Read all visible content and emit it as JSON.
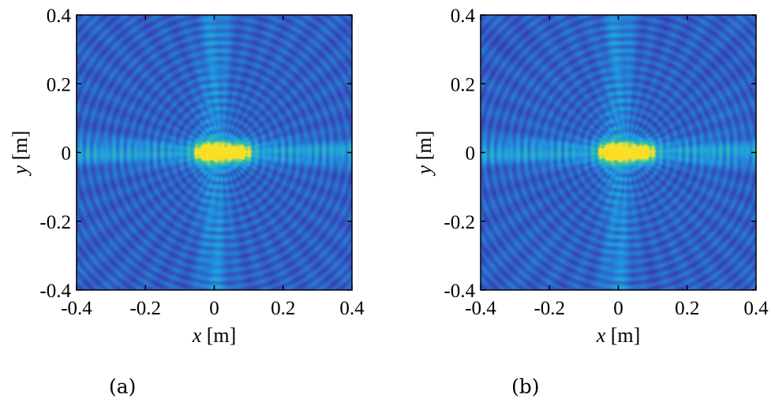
{
  "chart_data": [
    {
      "type": "heatmap",
      "panel_label": "(a)",
      "xlabel_var": "x",
      "xlabel_unit": " [m]",
      "ylabel_var": "y",
      "ylabel_unit": " [m]",
      "xlim": [
        -0.4,
        0.4
      ],
      "ylim": [
        -0.4,
        0.4
      ],
      "x_ticks": [
        -0.4,
        -0.2,
        0,
        0.2,
        0.4
      ],
      "y_ticks": [
        -0.4,
        -0.2,
        0,
        0.2,
        0.4
      ],
      "x_tick_labels": [
        "-0.4",
        "-0.2",
        "0",
        "0.2",
        "0.4"
      ],
      "y_tick_labels": [
        "-0.4",
        "-0.2",
        "0",
        "0.2",
        "0.4"
      ],
      "colormap": "parula",
      "hotspot_x": [
        -0.03,
        0.08
      ],
      "hotspot_y": 0,
      "grid": false,
      "noise": 0.15
    },
    {
      "type": "heatmap",
      "panel_label": "(b)",
      "xlabel_var": "x",
      "xlabel_unit": " [m]",
      "ylabel_var": "y",
      "ylabel_unit": " [m]",
      "xlim": [
        -0.4,
        0.4
      ],
      "ylim": [
        -0.4,
        0.4
      ],
      "x_ticks": [
        -0.4,
        -0.2,
        0,
        0.2,
        0.4
      ],
      "y_ticks": [
        -0.4,
        -0.2,
        0,
        0.2,
        0.4
      ],
      "x_tick_labels": [
        "-0.4",
        "-0.2",
        "0",
        "0.2",
        "0.4"
      ],
      "y_tick_labels": [
        "-0.4",
        "-0.2",
        "0",
        "0.2",
        "0.4"
      ],
      "colormap": "parula",
      "hotspot_x": [
        -0.03,
        0.08
      ],
      "hotspot_y": 0,
      "grid": false,
      "noise": 0.45
    }
  ],
  "colors": {
    "cmap_low": "#3e26a8",
    "cmap_mid": "#1f9ae0",
    "cmap_green": "#35c7a0",
    "cmap_high": "#fadf28",
    "axis": "#000000"
  }
}
